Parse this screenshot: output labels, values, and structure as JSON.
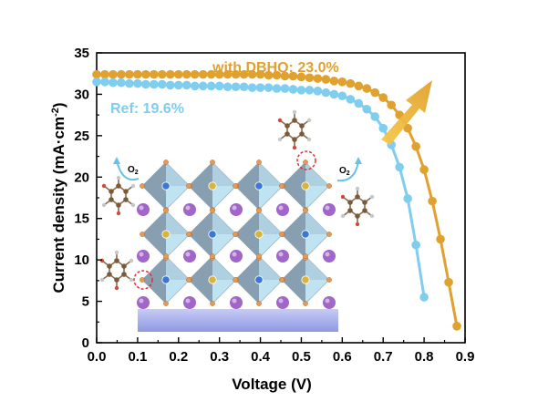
{
  "chart_data": {
    "type": "line",
    "xlabel": "Voltage (V)",
    "ylabel_main": "Current density (mA·cm",
    "ylabel_sup": "-2",
    "ylabel_close": ")",
    "xlim": [
      0.0,
      0.9
    ],
    "ylim": [
      0,
      35
    ],
    "x_ticks": [
      "0.0",
      "0.1",
      "0.2",
      "0.3",
      "0.4",
      "0.5",
      "0.6",
      "0.7",
      "0.8",
      "0.9"
    ],
    "y_ticks": [
      "0",
      "5",
      "10",
      "15",
      "20",
      "25",
      "30",
      "35"
    ],
    "grid": false,
    "series": [
      {
        "name": "with DBHQ: 23.0%",
        "color": "#E0A12E",
        "x": [
          0.0,
          0.02,
          0.04,
          0.06,
          0.08,
          0.1,
          0.12,
          0.14,
          0.16,
          0.18,
          0.2,
          0.22,
          0.24,
          0.26,
          0.28,
          0.3,
          0.32,
          0.34,
          0.36,
          0.38,
          0.4,
          0.42,
          0.44,
          0.46,
          0.48,
          0.5,
          0.52,
          0.54,
          0.56,
          0.58,
          0.6,
          0.62,
          0.64,
          0.66,
          0.68,
          0.7,
          0.72,
          0.74,
          0.76,
          0.78,
          0.8,
          0.82,
          0.84,
          0.86,
          0.88
        ],
        "y": [
          32.4,
          32.4,
          32.4,
          32.4,
          32.4,
          32.4,
          32.4,
          32.4,
          32.4,
          32.4,
          32.4,
          32.4,
          32.4,
          32.4,
          32.4,
          32.4,
          32.4,
          32.4,
          32.4,
          32.4,
          32.4,
          32.3,
          32.3,
          32.2,
          32.2,
          32.1,
          32.0,
          31.9,
          31.8,
          31.6,
          31.5,
          31.3,
          31.0,
          30.7,
          30.2,
          29.6,
          28.7,
          27.5,
          25.9,
          23.7,
          20.9,
          17.1,
          12.5,
          7.3,
          2.0
        ]
      },
      {
        "name": "Ref: 19.6%",
        "color": "#7FCDEF",
        "x": [
          0.0,
          0.02,
          0.04,
          0.06,
          0.08,
          0.1,
          0.12,
          0.14,
          0.16,
          0.18,
          0.2,
          0.22,
          0.24,
          0.26,
          0.28,
          0.3,
          0.32,
          0.34,
          0.36,
          0.38,
          0.4,
          0.42,
          0.44,
          0.46,
          0.48,
          0.5,
          0.52,
          0.54,
          0.56,
          0.58,
          0.6,
          0.62,
          0.64,
          0.66,
          0.68,
          0.7,
          0.72,
          0.74,
          0.76,
          0.78,
          0.8
        ],
        "y": [
          31.5,
          31.5,
          31.4,
          31.4,
          31.3,
          31.3,
          31.2,
          31.2,
          31.2,
          31.1,
          31.1,
          31.1,
          31.0,
          31.0,
          31.0,
          31.0,
          30.9,
          30.9,
          30.9,
          30.8,
          30.8,
          30.8,
          30.7,
          30.7,
          30.6,
          30.5,
          30.5,
          30.4,
          30.2,
          30.0,
          29.8,
          29.4,
          28.9,
          28.2,
          27.3,
          25.9,
          23.9,
          21.2,
          17.4,
          11.8,
          5.5
        ]
      }
    ]
  },
  "colors": {
    "dbhq": "#E0A12E",
    "ref": "#7FCDEF",
    "octahedron_light": "#BFE3F0",
    "octahedron_dark": "#7E93A6",
    "a_site": "#A066C8",
    "b_site_gold": "#D9B43A",
    "b_site_blue": "#3A78D8",
    "x_site": "#E69A55",
    "substrate": "#A9B2EC"
  },
  "inset": {
    "oxygen_left": "O",
    "oxygen_left_sub": "2",
    "oxygen_right": "O",
    "oxygen_right_sub": "2"
  }
}
